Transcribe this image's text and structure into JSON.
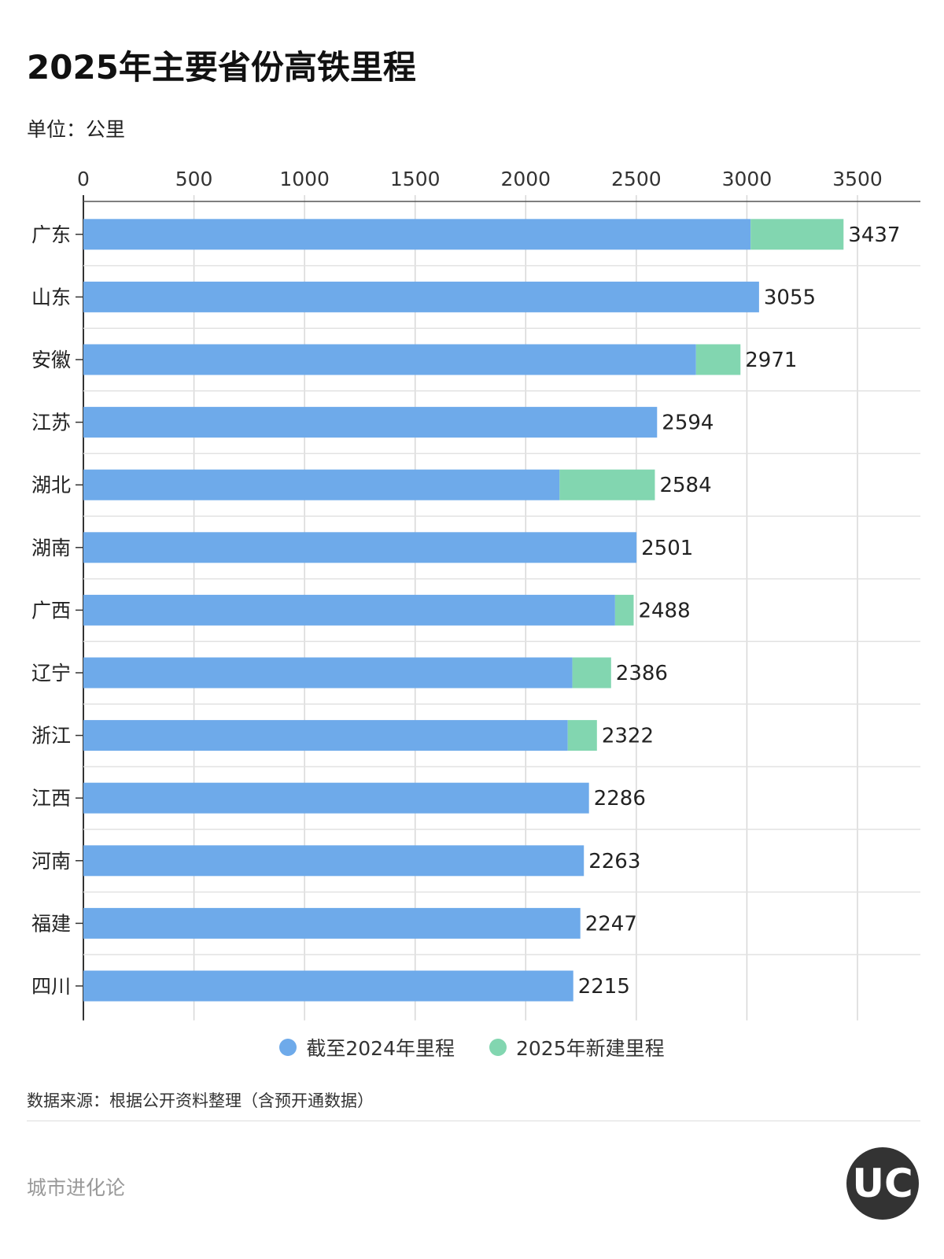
{
  "header": {
    "title": "2025年主要省份高铁里程",
    "unit": "单位：公里"
  },
  "chart_data": {
    "type": "bar",
    "orientation": "horizontal",
    "stacked": true,
    "categories": [
      "广东",
      "山东",
      "安徽",
      "江苏",
      "湖北",
      "湖南",
      "广西",
      "辽宁",
      "浙江",
      "江西",
      "河南",
      "福建",
      "四川"
    ],
    "series": [
      {
        "name": "截至2024年里程",
        "color": "#6eaaea",
        "values": [
          3017,
          3055,
          2770,
          2594,
          2153,
          2501,
          2404,
          2211,
          2190,
          2286,
          2263,
          2247,
          2215
        ]
      },
      {
        "name": "2025年新建里程",
        "color": "#82d6b0",
        "values": [
          420,
          0,
          201,
          0,
          431,
          0,
          84,
          175,
          132,
          0,
          0,
          0,
          0
        ]
      }
    ],
    "totals": [
      3437,
      3055,
      2971,
      2594,
      2584,
      2501,
      2488,
      2386,
      2322,
      2286,
      2263,
      2247,
      2215
    ],
    "xlim": [
      0,
      3750
    ],
    "xticks": [
      0,
      500,
      1000,
      1500,
      2000,
      2500,
      3000,
      3500
    ],
    "xaxis_position": "top",
    "grid": true,
    "legend_position": "bottom"
  },
  "footer": {
    "source": "数据来源：根据公开资料整理（含预开通数据）",
    "brand": "城市进化论",
    "logo": "UC"
  }
}
